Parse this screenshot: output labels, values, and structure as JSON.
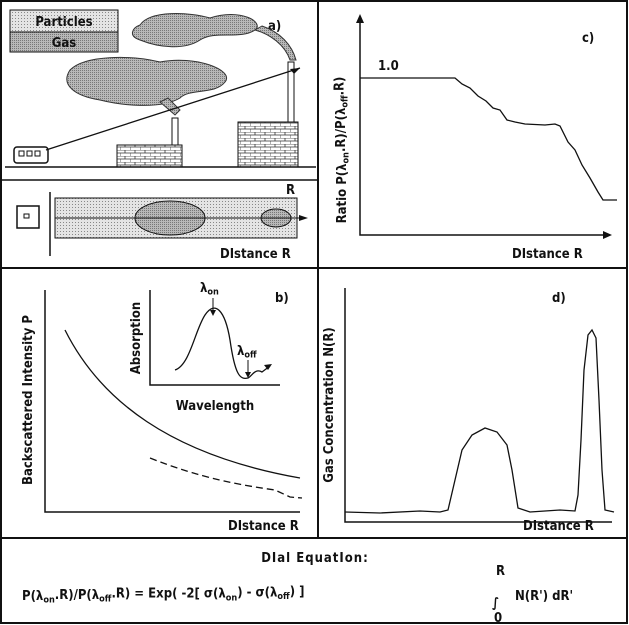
{
  "panel_a": {
    "label": "a)",
    "legend": [
      "Particles",
      "Gas"
    ],
    "range_label": "R",
    "x_label": "DIstance R"
  },
  "panel_b": {
    "label": "b)",
    "y_label": "Backscattered Intensity P",
    "x_label": "DIstance R",
    "inset": {
      "y_label": "Absorption",
      "x_label": "Wavelength",
      "lambda_on": [
        {
          "t": "λ"
        },
        {
          "sub": "on"
        }
      ],
      "lambda_off": [
        {
          "t": "λ"
        },
        {
          "sub": "off"
        }
      ]
    }
  },
  "panel_c": {
    "label": "c)",
    "level_label": "1.0",
    "x_label": "DIstance R",
    "y_label": [
      {
        "t": "Ratio P(λ"
      },
      {
        "sub": "on"
      },
      {
        "t": ".R)/P(λ"
      },
      {
        "sub": "off"
      },
      {
        "t": ".R)"
      }
    ]
  },
  "panel_d": {
    "label": "d)",
    "y_label": "Gas Concentration N(R)",
    "x_label": "DIstance R"
  },
  "equation": {
    "title": "DIal EquatIon:",
    "lhs": [
      {
        "t": "P(λ"
      },
      {
        "sub": "on"
      },
      {
        "t": ".R)/P(λ"
      },
      {
        "sub": "off"
      },
      {
        "t": ".R) = Exp( -2[ σ(λ"
      },
      {
        "sub": "on"
      },
      {
        "t": ") - σ(λ"
      },
      {
        "sub": "off"
      },
      {
        "t": ") ]"
      }
    ],
    "integral": "∫",
    "upper": "R",
    "lower": "0",
    "integrand": "N(R') dR'"
  }
}
